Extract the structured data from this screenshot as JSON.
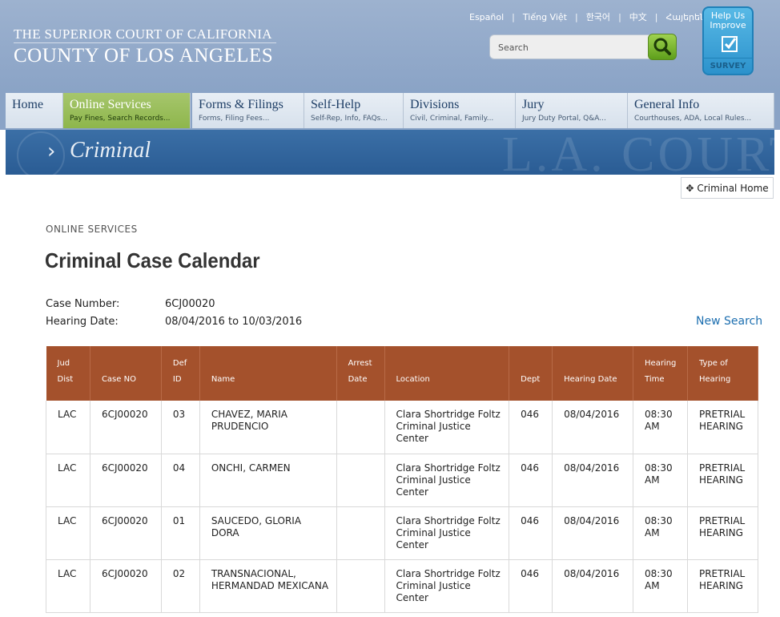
{
  "header": {
    "court_line1": "THE SUPERIOR COURT OF CALIFORNIA",
    "court_line2": "COUNTY OF LOS ANGELES",
    "languages": [
      "Español",
      "Tiếng Việt",
      "한국어",
      "中文",
      "Հայերեն"
    ],
    "search_placeholder": "Search",
    "survey_top": "Help Us Improve",
    "survey_bottom": "SURVEY"
  },
  "nav": [
    {
      "title": "Home",
      "sub": ""
    },
    {
      "title": "Online Services",
      "sub": "Pay Fines, Search Records..."
    },
    {
      "title": "Forms & Filings",
      "sub": "Forms, Filing Fees..."
    },
    {
      "title": "Self-Help",
      "sub": "Self-Rep, Info, FAQs..."
    },
    {
      "title": "Divisions",
      "sub": "Civil, Criminal, Family..."
    },
    {
      "title": "Jury",
      "sub": "Jury Duty Portal, Q&A..."
    },
    {
      "title": "General Info",
      "sub": "Courthouses, ADA, Local Rules..."
    }
  ],
  "banner": {
    "title": "Criminal",
    "bg_text": "L.A. COURT"
  },
  "criminal_home": "Criminal Home",
  "page": {
    "eyebrow": "ONLINE SERVICES",
    "title": "Criminal Case Calendar",
    "case_number_label": "Case Number:",
    "case_number_value": "6CJ00020",
    "hearing_date_label": "Hearing Date:",
    "hearing_date_value": "08/04/2016 to 10/03/2016",
    "new_search": "New Search"
  },
  "table": {
    "headers": [
      [
        "Jud",
        "Dist"
      ],
      [
        "Case NO"
      ],
      [
        "Def",
        "ID"
      ],
      [
        "Name"
      ],
      [
        "Arrest",
        "Date"
      ],
      [
        "Location"
      ],
      [
        "Dept"
      ],
      [
        "Hearing Date"
      ],
      [
        "Hearing",
        "Time"
      ],
      [
        "Type of",
        "Hearing"
      ]
    ],
    "rows": [
      [
        "LAC",
        "6CJ00020",
        "03",
        "CHAVEZ, MARIA PRUDENCIO",
        "",
        "Clara Shortridge Foltz Criminal Justice Center",
        "046",
        "08/04/2016",
        "08:30 AM",
        "PRETRIAL HEARING"
      ],
      [
        "LAC",
        "6CJ00020",
        "04",
        "ONCHI, CARMEN",
        "",
        "Clara Shortridge Foltz Criminal Justice Center",
        "046",
        "08/04/2016",
        "08:30 AM",
        "PRETRIAL HEARING"
      ],
      [
        "LAC",
        "6CJ00020",
        "01",
        "SAUCEDO, GLORIA DORA",
        "",
        "Clara Shortridge Foltz Criminal Justice Center",
        "046",
        "08/04/2016",
        "08:30 AM",
        "PRETRIAL HEARING"
      ],
      [
        "LAC",
        "6CJ00020",
        "02",
        "TRANSNACIONAL, HERMANDAD MEXICANA",
        "",
        "Clara Shortridge Foltz Criminal Justice Center",
        "046",
        "08/04/2016",
        "08:30 AM",
        "PRETRIAL HEARING"
      ]
    ]
  },
  "colors": {
    "header_bg": "#8aa3c6",
    "nav_active": "#9cc05e",
    "table_header": "#a4512c",
    "link": "#1d6fb0",
    "banner": "#2f6299"
  }
}
